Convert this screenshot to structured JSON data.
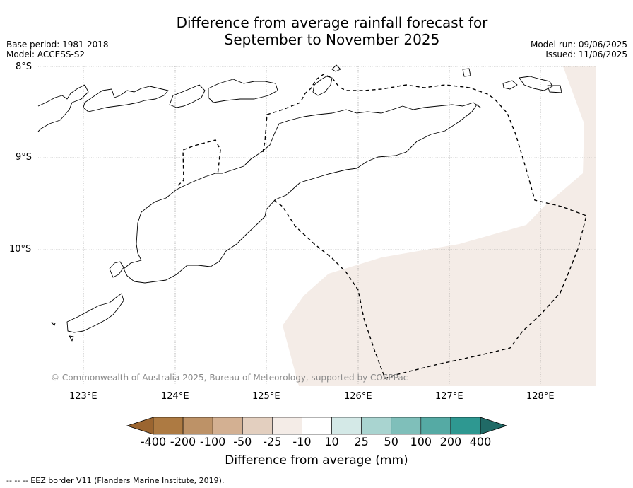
{
  "title": {
    "line1": "Difference from average rainfall forecast for",
    "line2": "September to November 2025"
  },
  "meta_left": {
    "base_period": "Base period: 1981-2018",
    "model": "Model: ACCESS-S2"
  },
  "meta_right": {
    "model_run": "Model run: 09/06/2025",
    "issued": "Issued: 11/06/2025"
  },
  "map": {
    "lat_labels": [
      "8°S",
      "9°S",
      "10°S"
    ],
    "lon_labels": [
      "123°E",
      "124°E",
      "125°E",
      "126°E",
      "127°E",
      "128°E"
    ],
    "copyright": "© Commonwealth of Australia 2025, Bureau of Meteorology, supported by COSPPac",
    "shaded_category": "-10 to -25",
    "shade_color": "#f4ece7",
    "coastline_color": "#000000"
  },
  "colorbar": {
    "tick_labels": [
      "-400",
      "-200",
      "-100",
      "-50",
      "-25",
      "-10",
      "10",
      "25",
      "50",
      "100",
      "200",
      "400"
    ],
    "colors": [
      "#9b6530",
      "#ad7a42",
      "#bd9267",
      "#d3b092",
      "#e3cfbf",
      "#f4ece7",
      "#ffffff",
      "#d4e9e7",
      "#a9d4d0",
      "#7fbfba",
      "#55aaa4",
      "#2e9891",
      "#206a66"
    ],
    "label": "Difference from average (mm)"
  },
  "footnote": "-- -- -- EEZ border V11 (Flanders Marine Institute, 2019)."
}
